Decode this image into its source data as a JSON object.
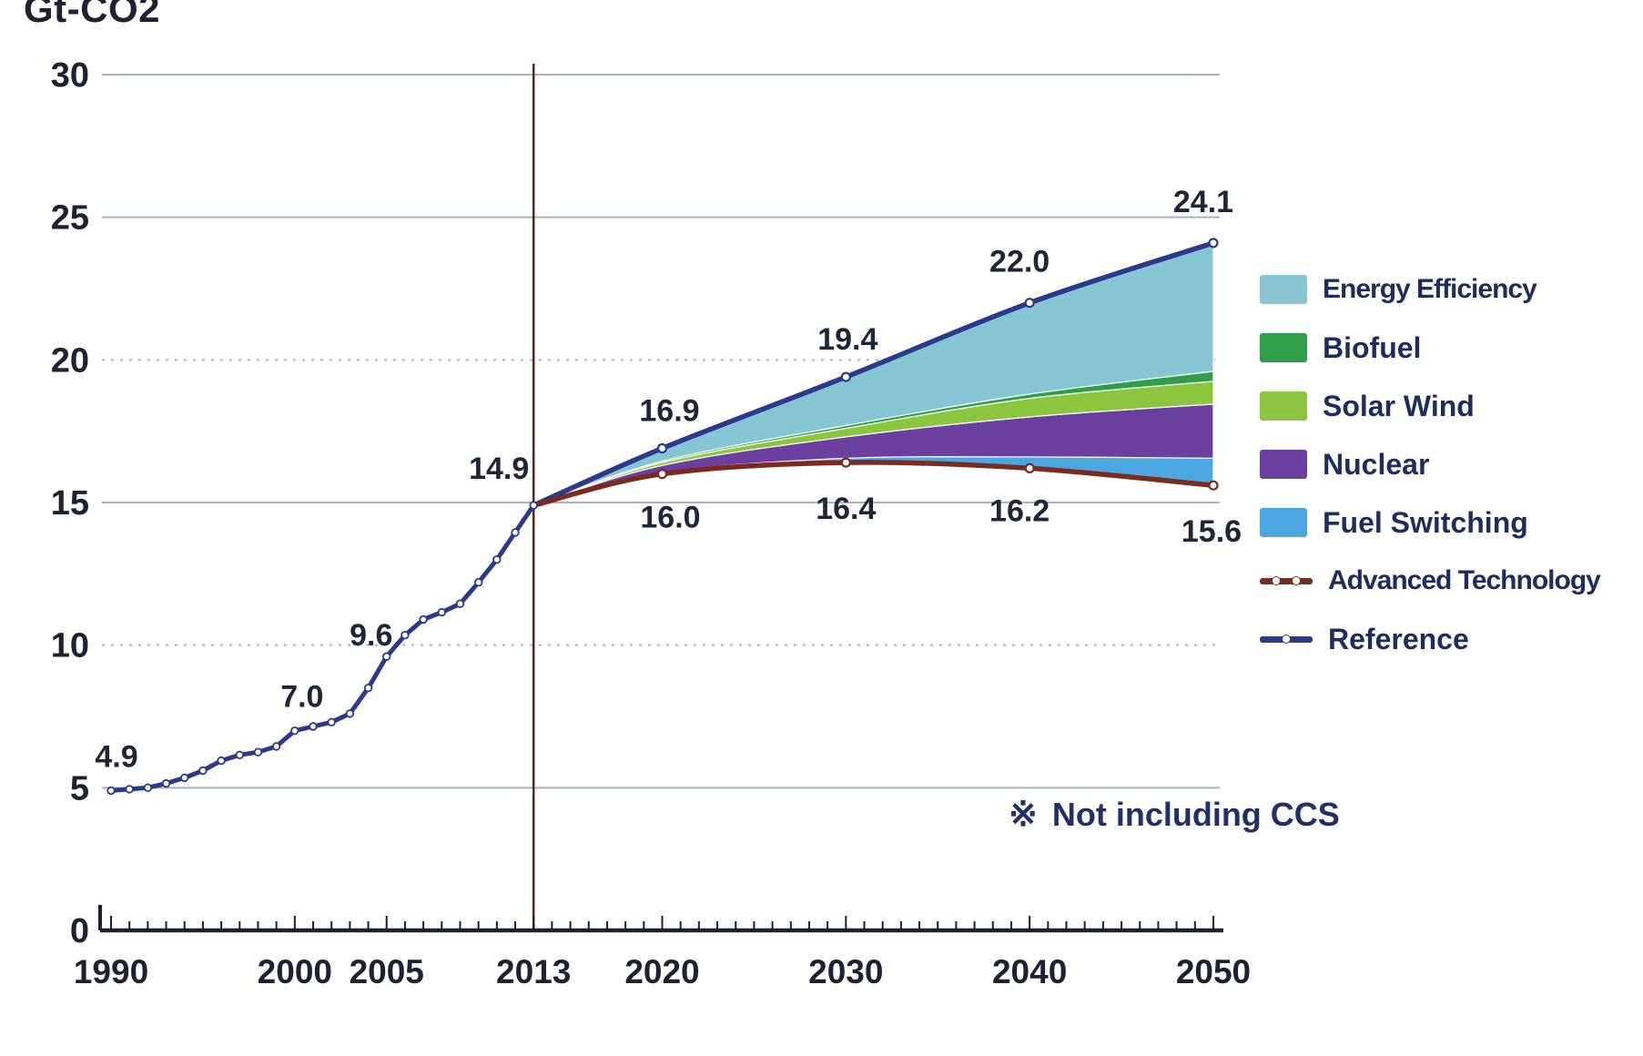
{
  "title": "Gt-CO2",
  "note": {
    "symbol": "※",
    "text": "Not including CCS"
  },
  "legend": {
    "items": [
      {
        "label": "Energy Efficiency",
        "type": "area",
        "key": "energy_efficiency"
      },
      {
        "label": "Biofuel",
        "type": "area",
        "key": "biofuel"
      },
      {
        "label": "Solar Wind",
        "type": "area",
        "key": "solar_wind"
      },
      {
        "label": "Nuclear",
        "type": "area",
        "key": "nuclear"
      },
      {
        "label": "Fuel Switching",
        "type": "area",
        "key": "fuel_switching"
      },
      {
        "label": "Advanced Technology",
        "type": "line",
        "key": "advanced_technology",
        "markers": 2
      },
      {
        "label": "Reference",
        "type": "line",
        "key": "reference",
        "markers": 1
      }
    ]
  },
  "chart_data": {
    "type": "area",
    "ylabel": "Gt-CO2",
    "ylim": [
      0,
      30
    ],
    "yticks": [
      0,
      5,
      10,
      15,
      20,
      25,
      30
    ],
    "dotted_gridlines": [
      10,
      20
    ],
    "xlim": [
      1990,
      2050
    ],
    "xticks": [
      1990,
      2000,
      2005,
      2013,
      2020,
      2030,
      2040,
      2050
    ],
    "divider_year": 2013,
    "historical": {
      "name": "Reference (historical)",
      "years": [
        1990,
        1991,
        1992,
        1993,
        1994,
        1995,
        1996,
        1997,
        1998,
        1999,
        2000,
        2001,
        2002,
        2003,
        2004,
        2005,
        2006,
        2007,
        2008,
        2009,
        2010,
        2011,
        2012,
        2013
      ],
      "values": [
        4.9,
        4.95,
        5.0,
        5.15,
        5.35,
        5.6,
        5.95,
        6.15,
        6.25,
        6.45,
        7.0,
        7.15,
        7.3,
        7.6,
        8.5,
        9.6,
        10.35,
        10.9,
        11.15,
        11.45,
        12.2,
        13.0,
        13.95,
        14.9
      ]
    },
    "projection": {
      "years": [
        2013,
        2020,
        2030,
        2040,
        2050
      ],
      "reference": [
        14.9,
        16.9,
        19.4,
        22.0,
        24.1
      ],
      "advanced_technology": [
        14.9,
        16.0,
        16.4,
        16.2,
        15.6
      ],
      "stack_boundaries": {
        "fuel_switching_top": [
          14.9,
          16.05,
          16.55,
          16.6,
          16.55
        ],
        "nuclear_top": [
          14.9,
          16.3,
          17.3,
          18.0,
          18.45
        ],
        "solar_wind_top": [
          14.9,
          16.4,
          17.6,
          18.65,
          19.25
        ],
        "biofuel_top": [
          14.9,
          16.45,
          17.7,
          18.8,
          19.6
        ]
      }
    },
    "annotations": {
      "reference_labels": [
        {
          "year": 1990,
          "value": 4.9,
          "text": "4.9"
        },
        {
          "year": 2000,
          "value": 7.0,
          "text": "7.0"
        },
        {
          "year": 2005,
          "value": 9.6,
          "text": "9.6"
        },
        {
          "year": 2013,
          "value": 14.9,
          "text": "14.9"
        },
        {
          "year": 2020,
          "value": 16.9,
          "text": "16.9"
        },
        {
          "year": 2030,
          "value": 19.4,
          "text": "19.4"
        },
        {
          "year": 2040,
          "value": 22.0,
          "text": "22.0"
        },
        {
          "year": 2050,
          "value": 24.1,
          "text": "24.1"
        }
      ],
      "advanced_technology_labels": [
        {
          "year": 2020,
          "value": 16.0,
          "text": "16.0"
        },
        {
          "year": 2030,
          "value": 16.4,
          "text": "16.4"
        },
        {
          "year": 2040,
          "value": 16.2,
          "text": "16.2"
        },
        {
          "year": 2050,
          "value": 15.6,
          "text": "15.6"
        }
      ]
    },
    "colors": {
      "reference": "#2c3a8e",
      "advanced_technology": "#7b2a1e",
      "energy_efficiency": "#85c6d2",
      "biofuel": "#2f9e49",
      "solar_wind": "#8cc63e",
      "nuclear": "#6b3fa0",
      "fuel_switching": "#4aa7e0",
      "grid": "#a8b2bc",
      "axis": "#1c2030",
      "divider": "#5a241c",
      "text": "#20263a"
    }
  }
}
